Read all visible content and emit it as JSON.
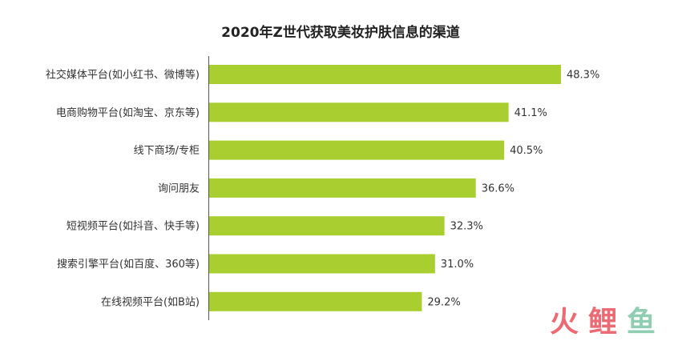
{
  "chart_data": {
    "type": "bar",
    "orientation": "horizontal",
    "title": "2020年Z世代获取美妆护肤信息的渠道",
    "categories": [
      "社交媒体平台(如小红书、微博等)",
      "电商购物平台(如淘宝、京东等)",
      "线下商场/专柜",
      "询问朋友",
      "短视频平台(如抖音、快手等)",
      "搜索引擎平台(如百度、360等)",
      "在线视频平台(如B站)"
    ],
    "values": [
      48.3,
      41.1,
      40.5,
      36.6,
      32.3,
      31.0,
      29.2
    ],
    "value_labels": [
      "48.3%",
      "41.1%",
      "40.5%",
      "36.6%",
      "32.3%",
      "31.0%",
      "29.2%"
    ],
    "unit": "%",
    "xlim": [
      0,
      50
    ],
    "grid": false,
    "legend": "none",
    "bar_color": "#a8cf2f",
    "axis_color": "#555555"
  },
  "watermark": {
    "brand_text": "火鲤鱼",
    "colors": [
      "#e8505b",
      "#e8505b",
      "#7cc6a6"
    ]
  }
}
